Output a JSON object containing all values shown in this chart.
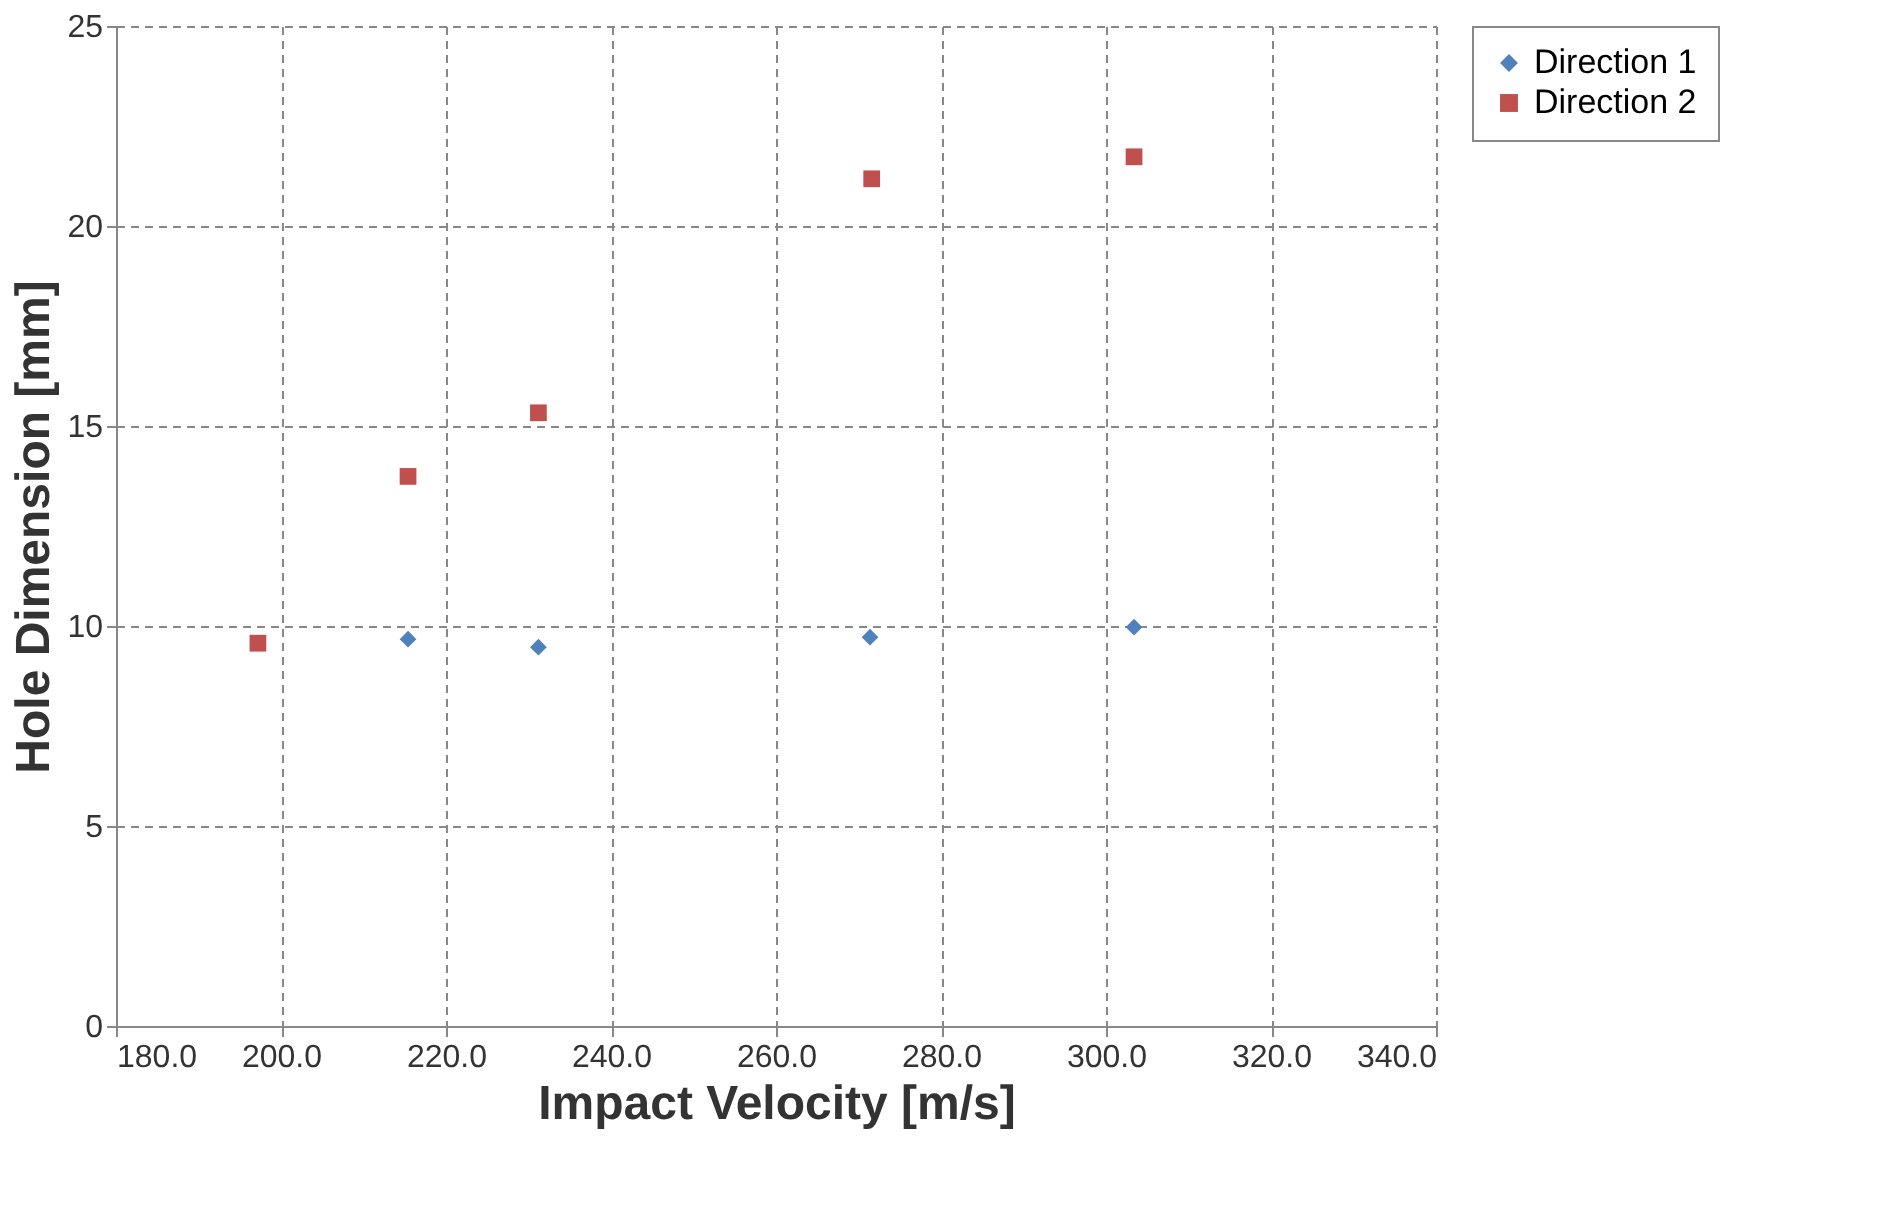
{
  "chart_data": {
    "type": "scatter",
    "xlabel": "Impact Velocity [m/s]",
    "ylabel": "Hole Dimension [mm]",
    "xlim": [
      180,
      340
    ],
    "xticks": [
      {
        "value": 180,
        "label": "180.0"
      },
      {
        "value": 200,
        "label": "200.0"
      },
      {
        "value": 220,
        "label": "220.0"
      },
      {
        "value": 240,
        "label": "240.0"
      },
      {
        "value": 260,
        "label": "260.0"
      },
      {
        "value": 280,
        "label": "280.0"
      },
      {
        "value": 300,
        "label": "300.0"
      },
      {
        "value": 320,
        "label": "320.0"
      },
      {
        "value": 340,
        "label": "340.0"
      }
    ],
    "ylim": [
      0,
      25
    ],
    "yticks": [
      0,
      5,
      10,
      15,
      20,
      25
    ],
    "grid": true,
    "legend": "right",
    "series": [
      {
        "name": "Direction 1",
        "color": "#4f81bd",
        "marker": "diamond",
        "x": [
          215.4,
          231.2,
          271.4,
          303.4
        ],
        "values": [
          9.67,
          9.47,
          9.72,
          9.97
        ]
      },
      {
        "name": "Direction 2",
        "color": "#c0504d",
        "marker": "square",
        "x": [
          197.2,
          215.4,
          231.2,
          271.6,
          303.4
        ],
        "values": [
          9.57,
          13.74,
          15.33,
          21.18,
          21.73
        ]
      }
    ]
  }
}
